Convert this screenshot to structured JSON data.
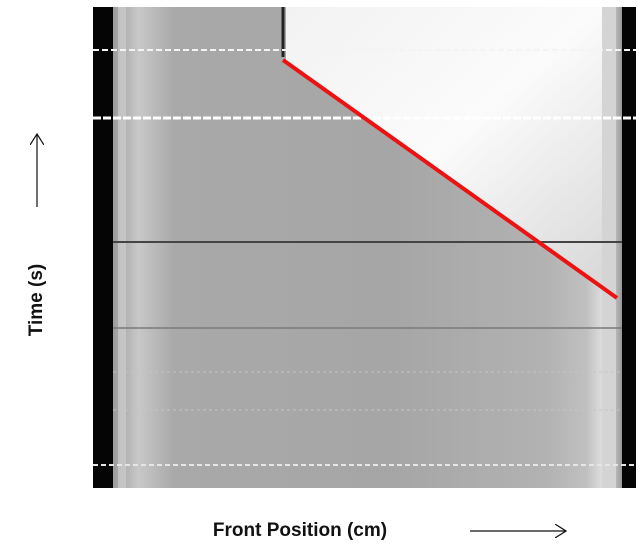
{
  "figure": {
    "y_axis_label": "Time (s)",
    "x_axis_label": "Front Position (cm)"
  }
}
